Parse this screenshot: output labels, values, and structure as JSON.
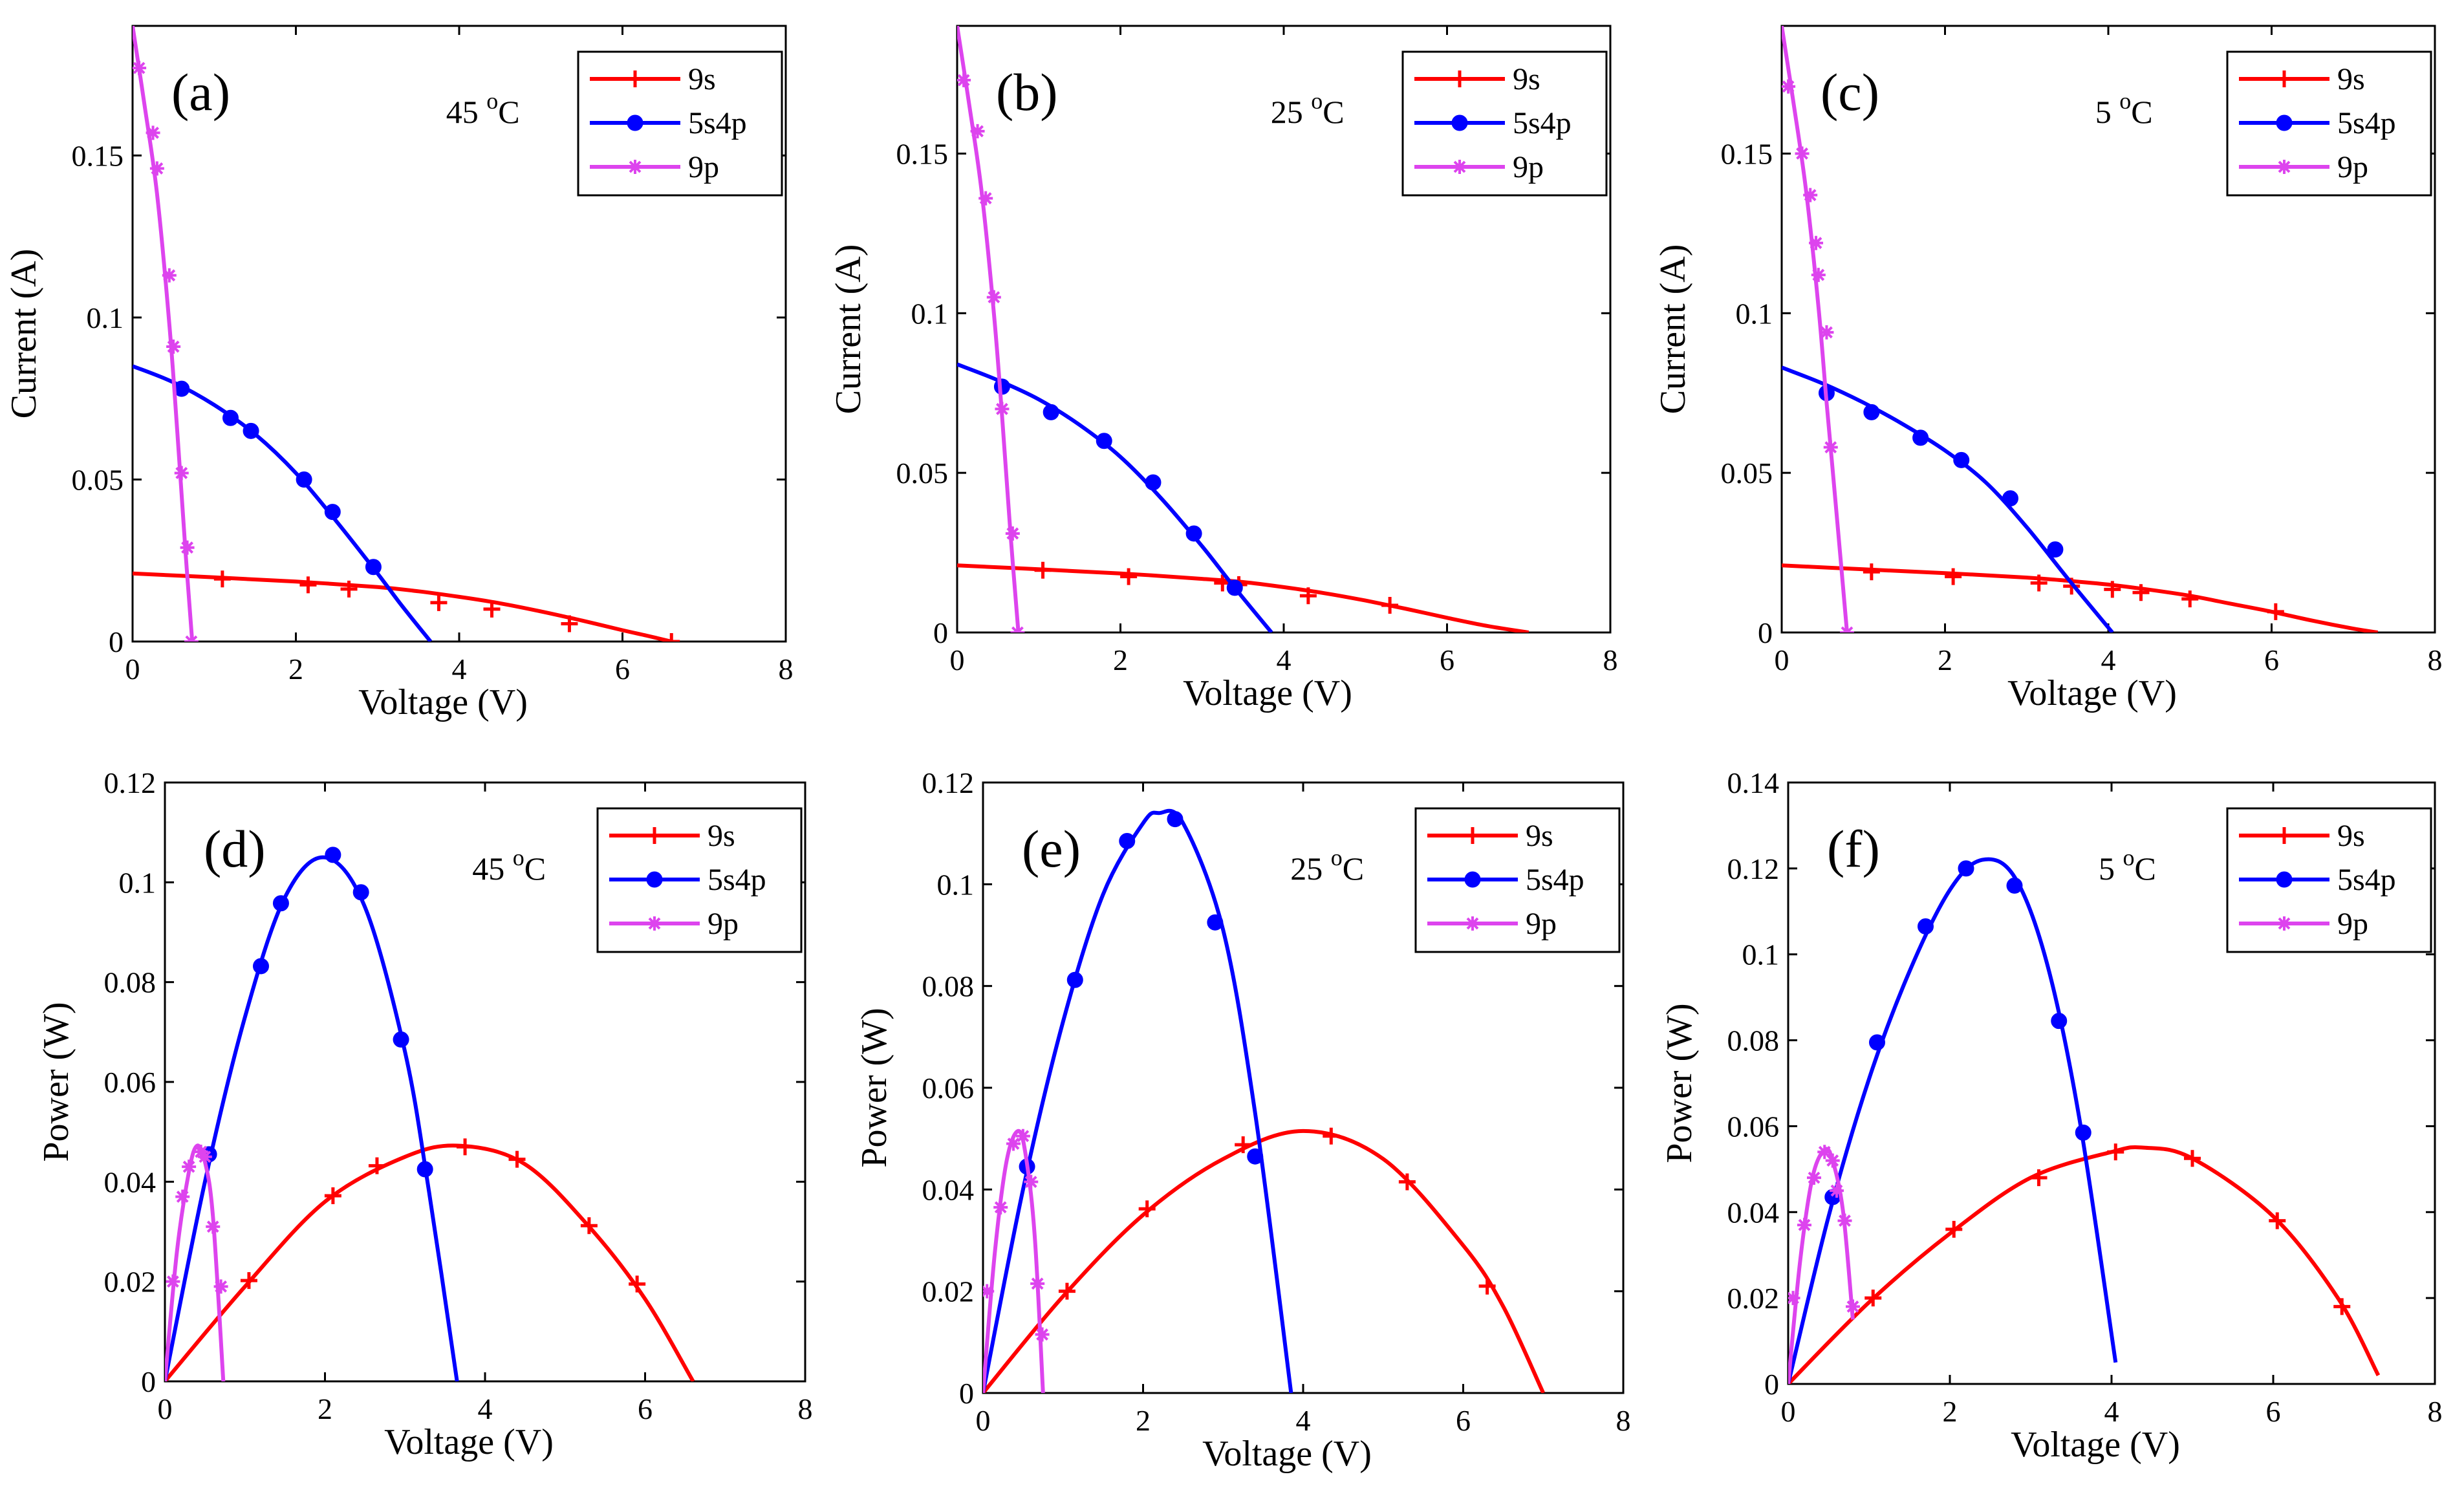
{
  "figure": {
    "series_style": {
      "9s": {
        "color": "#ff0000",
        "marker": "plus"
      },
      "5s4p": {
        "color": "#0000ff",
        "marker": "circle"
      },
      "9p": {
        "color": "#dd44ee",
        "marker": "star"
      }
    }
  },
  "chart_data": [
    {
      "type": "line",
      "panel": "(a)",
      "temperature": "45 °C",
      "xlabel": "Voltage (V)",
      "ylabel": "Current (A)",
      "xlim": [
        0,
        8
      ],
      "ylim": [
        0,
        0.19
      ],
      "xticks": [
        0,
        2,
        4,
        6,
        8
      ],
      "yticks": [
        0,
        0.05,
        0.1,
        0.15
      ],
      "legend": "top-right",
      "series": [
        {
          "name": "9s",
          "x": [
            0,
            1,
            2,
            3,
            3.5,
            4,
            4.5,
            5,
            5.5,
            6,
            6.3,
            6.6
          ],
          "y": [
            0.021,
            0.0198,
            0.0185,
            0.0168,
            0.0155,
            0.0138,
            0.0118,
            0.0093,
            0.0065,
            0.0035,
            0.0018,
            0
          ],
          "markers_x": [
            1.1,
            2.15,
            2.65,
            3.75,
            4.4,
            5.35,
            6.6
          ],
          "markers_y": [
            0.0193,
            0.0175,
            0.0162,
            0.012,
            0.01,
            0.0055,
            0
          ]
        },
        {
          "name": "5s4p",
          "x": [
            0,
            0.5,
            1,
            1.5,
            2,
            2.5,
            3,
            3.3,
            3.65
          ],
          "y": [
            0.085,
            0.08,
            0.073,
            0.064,
            0.052,
            0.037,
            0.021,
            0.011,
            0
          ],
          "markers_x": [
            0.6,
            1.2,
            1.45,
            2.1,
            2.45,
            2.95
          ],
          "markers_y": [
            0.078,
            0.069,
            0.065,
            0.05,
            0.04,
            0.023
          ]
        },
        {
          "name": "9p",
          "x": [
            0,
            0.15,
            0.3,
            0.45,
            0.55,
            0.65,
            0.73
          ],
          "y": [
            0.19,
            0.165,
            0.138,
            0.098,
            0.064,
            0.027,
            0
          ],
          "markers_x": [
            0.08,
            0.25,
            0.3,
            0.45,
            0.5,
            0.6,
            0.67,
            0.72
          ],
          "markers_y": [
            0.177,
            0.157,
            0.146,
            0.113,
            0.091,
            0.052,
            0.029,
            0
          ]
        }
      ]
    },
    {
      "type": "line",
      "panel": "(b)",
      "temperature": "25 °C",
      "xlabel": "Voltage (V)",
      "ylabel": "Current (A)",
      "xlim": [
        0,
        8
      ],
      "ylim": [
        0,
        0.19
      ],
      "xticks": [
        0,
        2,
        4,
        6,
        8
      ],
      "yticks": [
        0,
        0.05,
        0.1,
        0.15
      ],
      "legend": "top-right",
      "series": [
        {
          "name": "9s",
          "x": [
            0,
            1,
            2,
            3,
            3.5,
            4,
            4.5,
            5,
            5.5,
            6,
            6.5,
            7
          ],
          "y": [
            0.021,
            0.0198,
            0.0185,
            0.0168,
            0.0158,
            0.0142,
            0.0123,
            0.01,
            0.0074,
            0.0046,
            0.002,
            0
          ],
          "markers_x": [
            1.05,
            2.1,
            3.25,
            3.45,
            4.3,
            5.3
          ],
          "markers_y": [
            0.0195,
            0.0175,
            0.0155,
            0.015,
            0.0115,
            0.0085
          ]
        },
        {
          "name": "5s4p",
          "x": [
            0,
            0.5,
            1,
            1.5,
            2,
            2.5,
            3,
            3.4,
            3.85
          ],
          "y": [
            0.084,
            0.079,
            0.073,
            0.065,
            0.055,
            0.042,
            0.027,
            0.014,
            0
          ],
          "markers_x": [
            0.55,
            1.15,
            1.8,
            2.4,
            2.9,
            3.4
          ],
          "markers_y": [
            0.077,
            0.069,
            0.06,
            0.047,
            0.031,
            0.014
          ]
        },
        {
          "name": "9p",
          "x": [
            0,
            0.15,
            0.3,
            0.45,
            0.55,
            0.65,
            0.75
          ],
          "y": [
            0.19,
            0.165,
            0.138,
            0.1,
            0.068,
            0.032,
            0
          ],
          "markers_x": [
            0.08,
            0.25,
            0.35,
            0.45,
            0.55,
            0.68,
            0.74
          ],
          "markers_y": [
            0.173,
            0.157,
            0.136,
            0.105,
            0.07,
            0.031,
            0
          ]
        }
      ]
    },
    {
      "type": "line",
      "panel": "(c)",
      "temperature": "5 °C",
      "xlabel": "Voltage (V)",
      "ylabel": "Current (A)",
      "xlim": [
        0,
        8
      ],
      "ylim": [
        0,
        0.19
      ],
      "xticks": [
        0,
        2,
        4,
        6,
        8
      ],
      "yticks": [
        0,
        0.05,
        0.1,
        0.15
      ],
      "legend": "top-right",
      "series": [
        {
          "name": "9s",
          "x": [
            0,
            1,
            2,
            3,
            3.5,
            4,
            4.5,
            5,
            5.5,
            6,
            6.5,
            7,
            7.3
          ],
          "y": [
            0.021,
            0.0198,
            0.0186,
            0.0172,
            0.0162,
            0.015,
            0.0134,
            0.0115,
            0.009,
            0.0065,
            0.0037,
            0.0012,
            0
          ],
          "markers_x": [
            1.1,
            2.1,
            3.15,
            3.55,
            4.05,
            4.4,
            5.0,
            6.05
          ],
          "markers_y": [
            0.019,
            0.0175,
            0.0155,
            0.0145,
            0.0135,
            0.0125,
            0.0105,
            0.0065
          ]
        },
        {
          "name": "5s4p",
          "x": [
            0,
            0.5,
            1,
            1.5,
            2,
            2.5,
            3,
            3.5,
            4.05
          ],
          "y": [
            0.083,
            0.078,
            0.072,
            0.065,
            0.057,
            0.047,
            0.033,
            0.017,
            0
          ],
          "markers_x": [
            0.55,
            1.1,
            1.7,
            2.2,
            2.8,
            3.35
          ],
          "markers_y": [
            0.075,
            0.069,
            0.061,
            0.054,
            0.042,
            0.026
          ]
        },
        {
          "name": "9p",
          "x": [
            0,
            0.15,
            0.3,
            0.45,
            0.55,
            0.68,
            0.8
          ],
          "y": [
            0.19,
            0.165,
            0.138,
            0.102,
            0.072,
            0.035,
            0
          ],
          "markers_x": [
            0.08,
            0.25,
            0.35,
            0.42,
            0.45,
            0.55,
            0.6,
            0.8
          ],
          "markers_y": [
            0.171,
            0.15,
            0.137,
            0.122,
            0.112,
            0.094,
            0.058,
            0
          ]
        }
      ]
    },
    {
      "type": "line",
      "panel": "(d)",
      "temperature": "45 °C",
      "xlabel": "Voltage (V)",
      "ylabel": "Power (W)",
      "xlim": [
        0,
        8
      ],
      "ylim": [
        0,
        0.12
      ],
      "xticks": [
        0,
        2,
        4,
        6,
        8
      ],
      "yticks": [
        0,
        0.02,
        0.04,
        0.06,
        0.08,
        0.1,
        0.12
      ],
      "legend": "top-right",
      "series": [
        {
          "name": "9s",
          "x": [
            0,
            1,
            2,
            3,
            3.7,
            4.5,
            5.3,
            6,
            6.6
          ],
          "y": [
            0,
            0.019,
            0.036,
            0.045,
            0.0472,
            0.0435,
            0.031,
            0.0165,
            0
          ],
          "markers_x": [
            1.05,
            2.1,
            2.65,
            3.75,
            4.4,
            5.3,
            5.9
          ],
          "markers_y": [
            0.0202,
            0.0372,
            0.0432,
            0.047,
            0.0445,
            0.0312,
            0.0195
          ]
        },
        {
          "name": "5s4p",
          "x": [
            0,
            0.5,
            1,
            1.5,
            2,
            2.5,
            3,
            3.3,
            3.65
          ],
          "y": [
            0,
            0.04,
            0.073,
            0.097,
            0.105,
            0.095,
            0.066,
            0.038,
            0
          ],
          "markers_x": [
            0.55,
            1.2,
            1.45,
            2.1,
            2.45,
            2.95,
            3.25
          ],
          "markers_y": [
            0.0455,
            0.0832,
            0.0958,
            0.1055,
            0.098,
            0.0685,
            0.0425
          ]
        },
        {
          "name": "9p",
          "x": [
            0,
            0.15,
            0.3,
            0.4,
            0.5,
            0.6,
            0.73
          ],
          "y": [
            0,
            0.026,
            0.042,
            0.0472,
            0.044,
            0.033,
            0
          ],
          "markers_x": [
            0.1,
            0.22,
            0.3,
            0.45,
            0.5,
            0.6,
            0.7
          ],
          "markers_y": [
            0.02,
            0.037,
            0.043,
            0.046,
            0.045,
            0.031,
            0.019
          ]
        }
      ]
    },
    {
      "type": "line",
      "panel": "(e)",
      "temperature": "25 °C",
      "xlabel": "Voltage (V)",
      "ylabel": "Power (W)",
      "xlim": [
        0,
        8
      ],
      "ylim": [
        0,
        0.12
      ],
      "xticks": [
        0,
        2,
        4,
        6,
        8
      ],
      "yticks": [
        0,
        0.02,
        0.04,
        0.06,
        0.08,
        0.1,
        0.12
      ],
      "legend": "top-right",
      "series": [
        {
          "name": "9s",
          "x": [
            0,
            1,
            2,
            3,
            4,
            5,
            6,
            6.5,
            7
          ],
          "y": [
            0,
            0.019,
            0.035,
            0.046,
            0.0515,
            0.046,
            0.029,
            0.017,
            0
          ],
          "markers_x": [
            1.05,
            2.05,
            3.25,
            4.35,
            5.3,
            6.3
          ],
          "markers_y": [
            0.02,
            0.0362,
            0.0488,
            0.0505,
            0.0415,
            0.021
          ]
        },
        {
          "name": "5s4p",
          "x": [
            0,
            0.5,
            1,
            1.5,
            2,
            2.2,
            2.5,
            3,
            3.4,
            3.85
          ],
          "y": [
            0,
            0.04,
            0.073,
            0.098,
            0.112,
            0.114,
            0.112,
            0.091,
            0.055,
            0
          ],
          "markers_x": [
            0.55,
            1.15,
            1.8,
            2.4,
            2.9,
            3.4
          ],
          "markers_y": [
            0.0445,
            0.0812,
            0.1085,
            0.1128,
            0.0925,
            0.0465
          ]
        },
        {
          "name": "9p",
          "x": [
            0,
            0.15,
            0.3,
            0.45,
            0.55,
            0.65,
            0.75
          ],
          "y": [
            0,
            0.028,
            0.046,
            0.0515,
            0.045,
            0.03,
            0
          ],
          "markers_x": [
            0.05,
            0.22,
            0.38,
            0.5,
            0.6,
            0.68,
            0.74
          ],
          "markers_y": [
            0.02,
            0.0365,
            0.049,
            0.0505,
            0.0415,
            0.0215,
            0.0115
          ]
        }
      ]
    },
    {
      "type": "line",
      "panel": "(f)",
      "temperature": "5 °C",
      "xlabel": "Voltage (V)",
      "ylabel": "Power (W)",
      "xlim": [
        0,
        8
      ],
      "ylim": [
        0,
        0.14
      ],
      "xticks": [
        0,
        2,
        4,
        6,
        8
      ],
      "yticks": [
        0,
        0.02,
        0.04,
        0.06,
        0.08,
        0.1,
        0.12,
        0.14
      ],
      "legend": "top-right",
      "series": [
        {
          "name": "9s",
          "x": [
            0,
            1,
            2,
            3,
            4,
            4.4,
            5,
            6,
            6.8,
            7.3
          ],
          "y": [
            0,
            0.019,
            0.035,
            0.048,
            0.054,
            0.055,
            0.0525,
            0.039,
            0.02,
            0.002
          ],
          "markers_x": [
            1.05,
            2.05,
            3.1,
            4.05,
            5.0,
            6.05,
            6.85
          ],
          "markers_y": [
            0.02,
            0.036,
            0.048,
            0.054,
            0.0525,
            0.038,
            0.018
          ]
        },
        {
          "name": "5s4p",
          "x": [
            0,
            0.5,
            1,
            1.5,
            2,
            2.4,
            2.8,
            3.2,
            3.6,
            4.05
          ],
          "y": [
            0,
            0.039,
            0.071,
            0.096,
            0.115,
            0.122,
            0.118,
            0.098,
            0.062,
            0.005
          ],
          "markers_x": [
            0.55,
            1.1,
            1.7,
            2.2,
            2.8,
            3.35,
            3.65
          ],
          "markers_y": [
            0.0435,
            0.0795,
            0.1065,
            0.12,
            0.116,
            0.0845,
            0.0585
          ]
        },
        {
          "name": "9p",
          "x": [
            0,
            0.15,
            0.3,
            0.45,
            0.55,
            0.68,
            0.8
          ],
          "y": [
            0,
            0.029,
            0.048,
            0.0545,
            0.052,
            0.04,
            0.015
          ],
          "markers_x": [
            0.06,
            0.2,
            0.32,
            0.45,
            0.55,
            0.6,
            0.7,
            0.8
          ],
          "markers_y": [
            0.02,
            0.037,
            0.048,
            0.054,
            0.052,
            0.045,
            0.038,
            0.018
          ]
        }
      ]
    }
  ]
}
